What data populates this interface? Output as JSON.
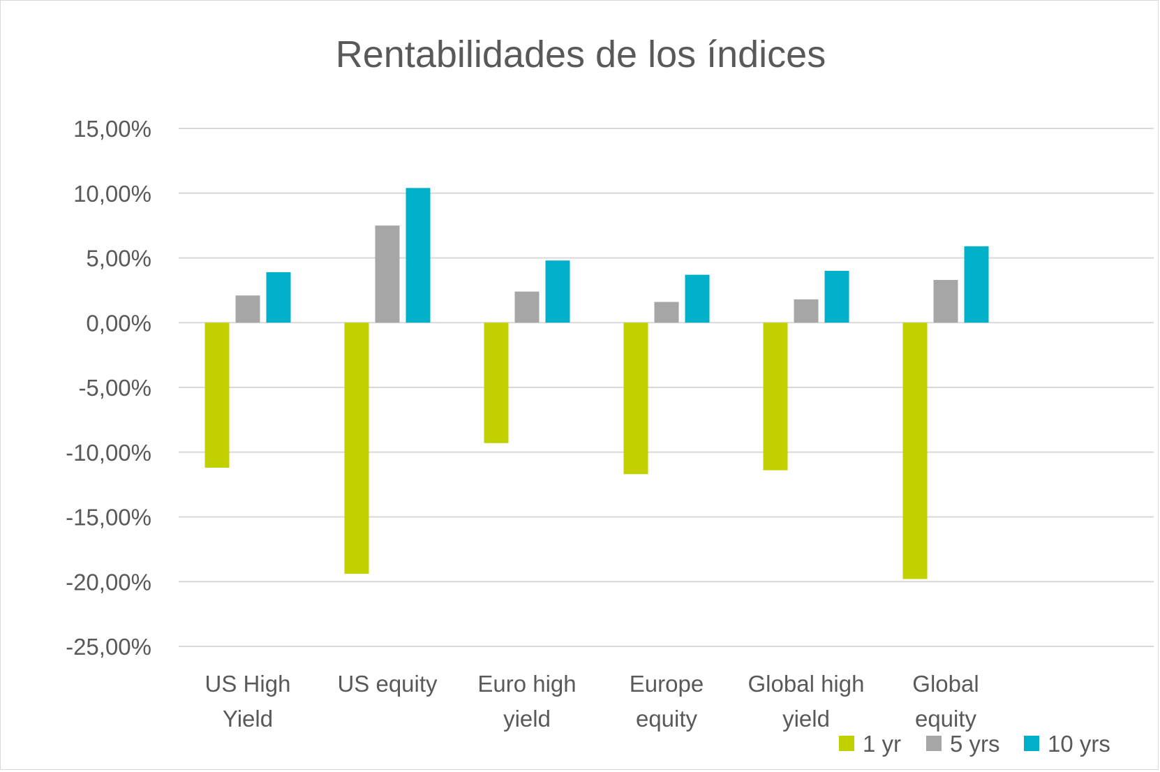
{
  "chart_data": {
    "type": "bar",
    "title": "Rentabilidades de los índices",
    "xlabel": "",
    "ylabel": "",
    "categories": [
      [
        "US High",
        "Yield"
      ],
      [
        "US equity"
      ],
      [
        "Euro high",
        "yield"
      ],
      [
        "Europe",
        "equity"
      ],
      [
        "Global high",
        "yield"
      ],
      [
        "Global",
        "equity"
      ]
    ],
    "series": [
      {
        "name": "1 yr",
        "color": "#c1d100",
        "values": [
          -11.2,
          -19.4,
          -9.3,
          -11.7,
          -11.4,
          -19.8
        ]
      },
      {
        "name": "5 yrs",
        "color": "#a6a6a6",
        "values": [
          2.1,
          7.5,
          2.4,
          1.6,
          1.8,
          3.3
        ]
      },
      {
        "name": "10 yrs",
        "color": "#00b0c8",
        "values": [
          3.9,
          10.4,
          4.8,
          3.7,
          4.0,
          5.9
        ]
      }
    ],
    "ylim": [
      -25,
      15
    ],
    "yticks": [
      15,
      10,
      5,
      0,
      -5,
      -10,
      -15,
      -20,
      -25
    ],
    "ytick_labels": [
      "15,00%",
      "10,00%",
      "5,00%",
      "0,00%",
      "-5,00%",
      "-10,00%",
      "-15,00%",
      "-20,00%",
      "-25,00%"
    ],
    "grid": true,
    "legend": "bottom-right"
  }
}
